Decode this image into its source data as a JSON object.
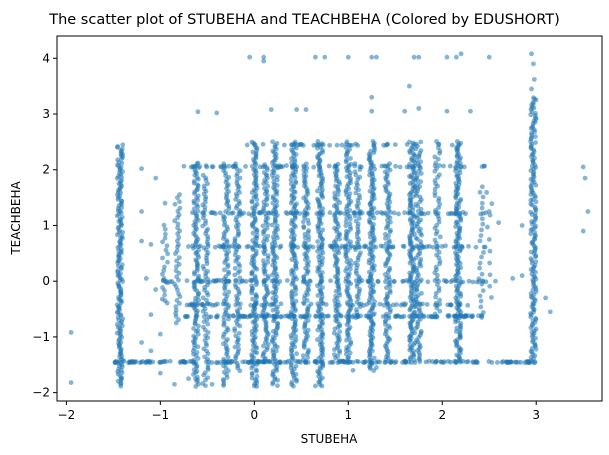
{
  "chart_data": {
    "type": "scatter",
    "title": "The scatter plot of STUBEHA and TEACHBEHA (Colored by EDUSHORT)",
    "xlabel": "STUBEHA",
    "ylabel": "TEACHBEHA",
    "xlim": [
      -2.1,
      3.7
    ],
    "ylim": [
      -2.15,
      4.4
    ],
    "xticks": [
      -2,
      -1,
      0,
      1,
      2,
      3
    ],
    "yticks": [
      -2,
      -1,
      0,
      1,
      2,
      3,
      4
    ],
    "grid": false,
    "legend": "none",
    "point_color": "#1f77b4",
    "point_opacity": 0.55,
    "points": [
      [
        -1.95,
        -0.92
      ],
      [
        -1.95,
        -1.82
      ],
      [
        -1.2,
        0.72
      ],
      [
        -1.1,
        0.66
      ],
      [
        -1.15,
        -1.45
      ],
      [
        -0.6,
        3.04
      ],
      [
        -0.4,
        3.02
      ],
      [
        0.18,
        3.08
      ],
      [
        0.45,
        3.08
      ],
      [
        0.55,
        3.08
      ],
      [
        1.25,
        3.05
      ],
      [
        1.25,
        3.3
      ],
      [
        1.6,
        3.05
      ],
      [
        1.65,
        3.5
      ],
      [
        1.75,
        3.1
      ],
      [
        2.05,
        3.05
      ],
      [
        2.3,
        3.05
      ],
      [
        -0.05,
        4.02
      ],
      [
        0.1,
        4.02
      ],
      [
        0.1,
        3.95
      ],
      [
        0.65,
        4.02
      ],
      [
        0.75,
        4.02
      ],
      [
        1.0,
        4.02
      ],
      [
        1.25,
        4.02
      ],
      [
        1.3,
        4.02
      ],
      [
        1.7,
        4.02
      ],
      [
        1.75,
        4.02
      ],
      [
        2.05,
        4.02
      ],
      [
        2.15,
        4.02
      ],
      [
        2.2,
        4.08
      ],
      [
        2.5,
        4.02
      ],
      [
        2.95,
        4.08
      ],
      [
        2.97,
        3.9
      ],
      [
        2.98,
        3.62
      ],
      [
        2.95,
        3.45
      ],
      [
        2.5,
        1.25
      ],
      [
        2.6,
        1.05
      ],
      [
        2.85,
        0.1
      ],
      [
        3.1,
        -0.3
      ],
      [
        3.15,
        -0.55
      ],
      [
        3.5,
        2.05
      ],
      [
        3.52,
        1.85
      ],
      [
        3.55,
        1.25
      ],
      [
        3.5,
        0.9
      ],
      [
        -1.2,
        2.02
      ],
      [
        -0.95,
        1.4
      ],
      [
        -0.95,
        -0.35
      ],
      [
        -1.0,
        -1.65
      ],
      [
        -0.85,
        -1.85
      ],
      [
        -0.7,
        -1.75
      ],
      [
        -0.45,
        -1.85
      ],
      [
        0.0,
        -1.88
      ],
      [
        0.65,
        -1.88
      ],
      [
        1.05,
        -1.6
      ],
      [
        1.3,
        -1.55
      ],
      [
        -1.05,
        1.85
      ],
      [
        -0.6,
        2.12
      ],
      [
        0.0,
        2.45
      ],
      [
        -1.2,
        -1.1
      ],
      [
        -1.0,
        -0.95
      ],
      [
        -1.1,
        -0.6
      ],
      [
        -1.05,
        -0.15
      ],
      [
        -1.15,
        0.05
      ],
      [
        -1.2,
        1.25
      ],
      [
        -1.1,
        -1.25
      ],
      [
        2.7,
        -1.45
      ],
      [
        2.75,
        0.05
      ],
      [
        2.85,
        1.0
      ]
    ],
    "columns": [
      {
        "x": -1.43,
        "y0": -1.88,
        "y1": 2.45,
        "n": 170
      },
      {
        "x": -0.62,
        "y0": -1.88,
        "y1": 2.1,
        "n": 120
      },
      {
        "x": -0.52,
        "y0": -1.88,
        "y1": 1.9,
        "n": 80
      },
      {
        "x": -0.3,
        "y0": -1.88,
        "y1": 2.1,
        "n": 100
      },
      {
        "x": -0.18,
        "y0": -1.6,
        "y1": 2.1,
        "n": 90
      },
      {
        "x": 0.0,
        "y0": -1.88,
        "y1": 2.5,
        "n": 150
      },
      {
        "x": 0.12,
        "y0": -1.45,
        "y1": 2.1,
        "n": 100
      },
      {
        "x": 0.22,
        "y0": -1.88,
        "y1": 2.5,
        "n": 140
      },
      {
        "x": 0.42,
        "y0": -1.88,
        "y1": 2.5,
        "n": 150
      },
      {
        "x": 0.55,
        "y0": -1.45,
        "y1": 2.1,
        "n": 100
      },
      {
        "x": 0.7,
        "y0": -1.88,
        "y1": 2.5,
        "n": 150
      },
      {
        "x": 0.88,
        "y0": -1.45,
        "y1": 2.1,
        "n": 110
      },
      {
        "x": 1.0,
        "y0": -1.45,
        "y1": 2.5,
        "n": 120
      },
      {
        "x": 1.25,
        "y0": -1.6,
        "y1": 2.5,
        "n": 150
      },
      {
        "x": 1.42,
        "y0": -1.45,
        "y1": 2.1,
        "n": 100
      },
      {
        "x": 1.68,
        "y0": -1.45,
        "y1": 2.5,
        "n": 150
      },
      {
        "x": 1.75,
        "y0": -1.45,
        "y1": 2.5,
        "n": 100
      },
      {
        "x": 2.17,
        "y0": -1.45,
        "y1": 2.5,
        "n": 150
      },
      {
        "x": 2.97,
        "y0": -1.45,
        "y1": 3.3,
        "n": 170
      },
      {
        "x": -0.82,
        "y0": -0.75,
        "y1": 1.55,
        "n": 40
      },
      {
        "x": -0.95,
        "y0": -0.4,
        "y1": 1.0,
        "n": 20
      },
      {
        "x": 1.1,
        "y0": -0.65,
        "y1": 2.1,
        "n": 60
      },
      {
        "x": 1.95,
        "y0": -0.65,
        "y1": 2.5,
        "n": 60
      },
      {
        "x": 2.42,
        "y0": -0.65,
        "y1": 1.7,
        "n": 25
      },
      {
        "x": 2.5,
        "y0": -0.3,
        "y1": 1.6,
        "n": 10
      }
    ],
    "rows": [
      {
        "y": -1.45,
        "x0": -1.5,
        "x1": 3.0,
        "n": 200
      },
      {
        "y": -0.63,
        "x0": -0.75,
        "x1": 2.5,
        "n": 120
      },
      {
        "y": -0.42,
        "x0": -0.75,
        "x1": 2.3,
        "n": 60
      },
      {
        "y": 0.0,
        "x0": -1.0,
        "x1": 2.6,
        "n": 80
      },
      {
        "y": 0.62,
        "x0": -0.75,
        "x1": 2.5,
        "n": 80
      },
      {
        "y": 1.22,
        "x0": -0.75,
        "x1": 2.5,
        "n": 70
      },
      {
        "y": 2.06,
        "x0": -0.75,
        "x1": 2.5,
        "n": 60
      },
      {
        "y": 2.45,
        "x0": -0.1,
        "x1": 2.3,
        "n": 30
      }
    ]
  }
}
